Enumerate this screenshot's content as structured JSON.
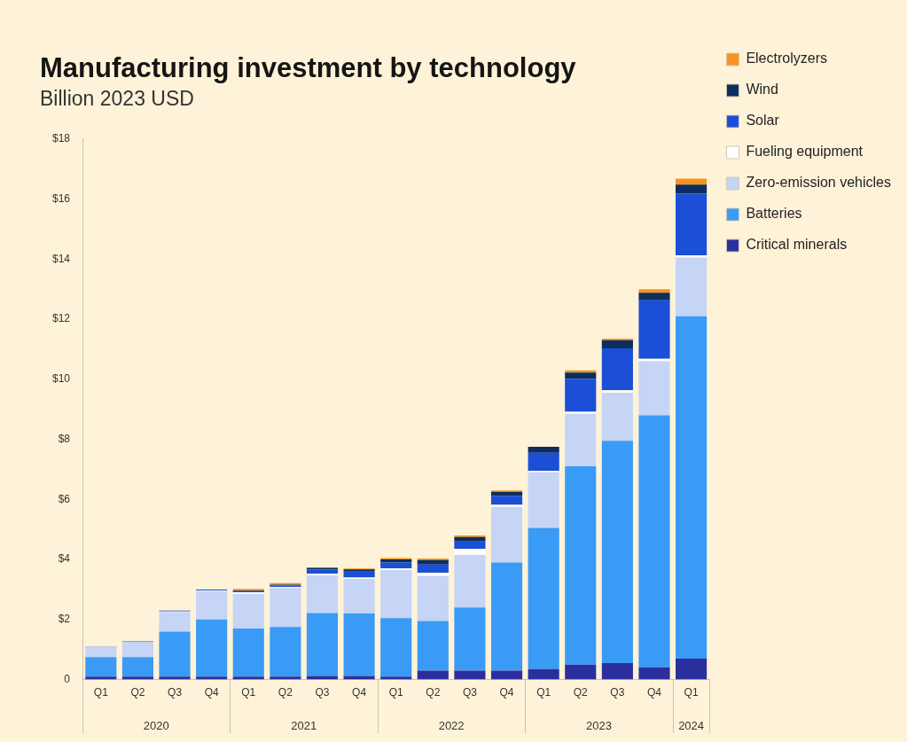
{
  "chart_data": {
    "type": "bar",
    "title": "Manufacturing investment by technology",
    "subtitle": "Billion 2023 USD",
    "stacked": true,
    "grid": false,
    "legend": "right",
    "categories": [
      "Q1",
      "Q2",
      "Q3",
      "Q4",
      "Q1",
      "Q2",
      "Q3",
      "Q4",
      "Q1",
      "Q2",
      "Q3",
      "Q4",
      "Q1",
      "Q2",
      "Q3",
      "Q4",
      "Q1"
    ],
    "years": [
      "2020",
      "2020",
      "2020",
      "2020",
      "2021",
      "2021",
      "2021",
      "2021",
      "2022",
      "2022",
      "2022",
      "2022",
      "2023",
      "2023",
      "2023",
      "2023",
      "2024"
    ],
    "ylim": [
      0,
      18
    ],
    "yticks": [
      0,
      {
        "value": 2,
        "label": "$2"
      },
      {
        "value": 4,
        "label": "$4"
      },
      {
        "value": 6,
        "label": "$6"
      },
      {
        "value": 8,
        "label": "$8"
      },
      {
        "value": 10,
        "label": "$10"
      },
      {
        "value": 12,
        "label": "$12"
      },
      {
        "value": 14,
        "label": "$14"
      },
      {
        "value": 16,
        "label": "$16"
      },
      {
        "value": 18,
        "label": "$18"
      }
    ],
    "series": [
      {
        "name": "Critical minerals",
        "color": "#2b2f9e",
        "values": [
          0.1,
          0.1,
          0.1,
          0.1,
          0.1,
          0.1,
          0.12,
          0.12,
          0.1,
          0.3,
          0.3,
          0.3,
          0.35,
          0.5,
          0.55,
          0.4,
          0.7
        ]
      },
      {
        "name": "Batteries",
        "color": "#3a9bf6",
        "values": [
          0.65,
          0.65,
          1.5,
          1.9,
          1.6,
          1.65,
          2.1,
          2.08,
          1.95,
          1.65,
          2.1,
          3.6,
          4.7,
          6.6,
          7.4,
          8.4,
          11.4
        ]
      },
      {
        "name": "Zero-emission vehicles",
        "color": "#c6d4f6",
        "values": [
          0.32,
          0.5,
          0.65,
          0.95,
          1.15,
          1.3,
          1.25,
          1.15,
          1.6,
          1.5,
          1.75,
          1.85,
          1.85,
          1.75,
          1.6,
          1.8,
          1.95
        ]
      },
      {
        "name": "Fueling equipment",
        "color": "#ffffff",
        "values": [
          0,
          0,
          0.02,
          0.02,
          0.05,
          0.03,
          0.05,
          0.05,
          0.05,
          0.1,
          0.2,
          0.07,
          0.05,
          0.07,
          0.08,
          0.08,
          0.08
        ]
      },
      {
        "name": "Solar",
        "color": "#1a4fd6",
        "values": [
          0.02,
          0.02,
          0.03,
          0.03,
          0.05,
          0.05,
          0.15,
          0.2,
          0.2,
          0.28,
          0.25,
          0.3,
          0.6,
          1.1,
          1.4,
          1.95,
          2.05
        ]
      },
      {
        "name": "Wind",
        "color": "#0d2d5e",
        "values": [
          0,
          0,
          0,
          0,
          0.02,
          0.03,
          0.05,
          0.07,
          0.1,
          0.15,
          0.15,
          0.13,
          0.2,
          0.2,
          0.27,
          0.25,
          0.3
        ]
      },
      {
        "name": "Electrolyzers",
        "color": "#f7941d",
        "values": [
          0,
          0,
          0,
          0,
          0.05,
          0.05,
          0.02,
          0.03,
          0.05,
          0.05,
          0.05,
          0.05,
          0,
          0.08,
          0.05,
          0.12,
          0.2
        ]
      }
    ]
  }
}
